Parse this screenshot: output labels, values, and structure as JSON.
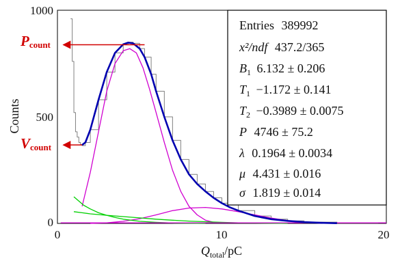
{
  "chart_data": {
    "type": "line",
    "xlabel": {
      "main": "Q",
      "sub": "total",
      "unit": "/pC"
    },
    "ylabel": "Counts",
    "xlim": [
      0,
      20
    ],
    "ylim": [
      0,
      1000
    ],
    "x_ticks": [
      "0",
      "10",
      "20"
    ],
    "y_ticks": [
      "0",
      "500",
      "1000"
    ],
    "annotations": {
      "peak": {
        "main": "P",
        "sub": "count",
        "value": 838,
        "x_range": [
          0.2,
          5.3
        ]
      },
      "valley": {
        "main": "V",
        "sub": "count",
        "value": 368,
        "x_range": [
          0.2,
          1.5
        ]
      }
    },
    "stats": {
      "entries_label": "Entries",
      "entries_value": "389992",
      "chi2_label": "x²/ndf",
      "chi2_value": "437.2/365",
      "b1_label": "B",
      "b1_sub": "1",
      "b1_value": "6.132 ± 0.206",
      "t1_label": "T",
      "t1_sub": "1",
      "t1_value": "−1.172 ± 0.141",
      "t2_label": "T",
      "t2_sub": "2",
      "t2_value": "−0.3989 ± 0.0075",
      "p_label": "P",
      "p_value": "4746 ± 75.2",
      "lambda_label": "λ",
      "lambda_value": "0.1964 ± 0.0034",
      "mu_label": "μ",
      "mu_value": "4.431 ± 0.016",
      "sigma_label": "σ",
      "sigma_value": "1.819 ± 0.014"
    },
    "series": [
      {
        "role": "histogram",
        "color": "#808080",
        "x": [
          0.8,
          0.9,
          1.0,
          1.1,
          1.2,
          1.3,
          1.4,
          1.5,
          1.7,
          2.0,
          2.5,
          3.0,
          3.5,
          4.0,
          4.3,
          4.6,
          5.0,
          5.3,
          5.7,
          6.0,
          6.5,
          7.0,
          7.5,
          8.0,
          8.5,
          9.0,
          9.5,
          10.0,
          11.0,
          12.0,
          13.0,
          14.0,
          15.0,
          17.0,
          19.5
        ],
        "values": [
          960,
          760,
          520,
          430,
          405,
          380,
          370,
          365,
          380,
          440,
          580,
          710,
          800,
          840,
          850,
          845,
          820,
          780,
          700,
          620,
          500,
          390,
          300,
          230,
          185,
          150,
          120,
          95,
          60,
          35,
          20,
          12,
          6,
          2,
          1
        ]
      },
      {
        "role": "total fit",
        "color": "#0000b0",
        "x": [
          1.5,
          1.7,
          2.0,
          2.5,
          3.0,
          3.5,
          4.0,
          4.3,
          4.6,
          5.0,
          5.3,
          5.7,
          6.0,
          6.5,
          7.0,
          7.5,
          8.0,
          8.5,
          9.0,
          9.5,
          10.0,
          10.5,
          11.0,
          12.0,
          13.0,
          14.0,
          15.0,
          16.0,
          17.0
        ],
        "values": [
          368,
          380,
          440,
          580,
          710,
          800,
          840,
          848,
          845,
          820,
          780,
          700,
          620,
          500,
          390,
          300,
          230,
          185,
          150,
          120,
          95,
          75,
          60,
          35,
          20,
          12,
          6,
          3,
          1
        ]
      },
      {
        "role": "gaussian component",
        "color": "#d000d0",
        "x": [
          1.5,
          2.0,
          2.5,
          3.0,
          3.5,
          4.0,
          4.4,
          4.8,
          5.2,
          5.6,
          6.0,
          6.5,
          7.0,
          7.5,
          8.0,
          8.5,
          9.0,
          9.5
        ],
        "values": [
          80,
          240,
          430,
          620,
          750,
          810,
          820,
          800,
          730,
          630,
          520,
          380,
          250,
          150,
          80,
          40,
          15,
          5
        ]
      },
      {
        "role": "secondary component",
        "color": "#d000d0",
        "x": [
          2.0,
          3.0,
          4.0,
          5.0,
          6.0,
          7.0,
          8.0,
          9.0,
          10.0,
          11.0,
          12.0,
          13.0,
          14.0,
          15.0,
          16.0
        ],
        "values": [
          0,
          3,
          10,
          22,
          40,
          60,
          72,
          75,
          68,
          55,
          40,
          25,
          13,
          5,
          1
        ]
      },
      {
        "role": "exponential component 1",
        "color": "#00d000",
        "x": [
          1.0,
          1.3,
          1.6,
          2.0,
          2.5,
          3.0,
          3.5,
          4.0,
          5.0,
          6.0,
          7.0,
          8.0,
          9.0
        ],
        "values": [
          125,
          105,
          85,
          68,
          50,
          38,
          28,
          20,
          10,
          5,
          2,
          1,
          0
        ]
      },
      {
        "role": "exponential component 2",
        "color": "#00d000",
        "x": [
          1.0,
          1.5,
          2.0,
          3.0,
          4.0,
          5.0,
          6.0,
          7.0,
          8.0,
          9.0,
          10.0,
          11.0,
          12.0,
          14.0
        ],
        "values": [
          55,
          50,
          45,
          38,
          32,
          26,
          20,
          15,
          11,
          8,
          5,
          3,
          2,
          0
        ]
      },
      {
        "role": "baseline",
        "color": "#d000d0",
        "x": [
          0.2,
          2.0,
          5.0,
          10.0,
          15.0,
          20.0
        ],
        "values": [
          3,
          3,
          3,
          3,
          3,
          3
        ]
      }
    ]
  }
}
